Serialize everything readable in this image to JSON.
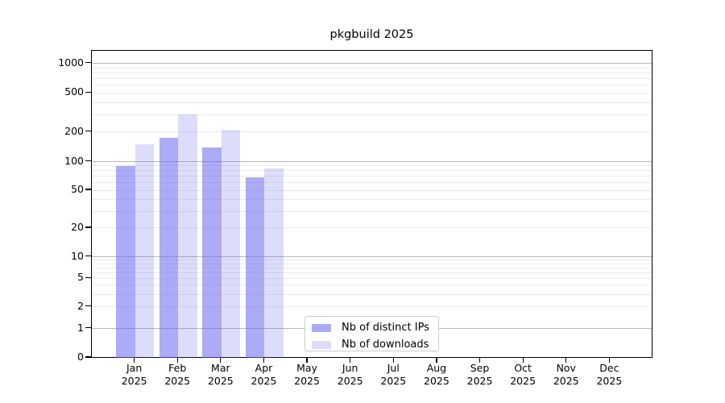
{
  "chart_data": {
    "type": "bar",
    "title": "pkgbuild 2025",
    "scale": "log",
    "categories": [
      "Jan",
      "Feb",
      "Mar",
      "Apr",
      "May",
      "Jun",
      "Jul",
      "Aug",
      "Sep",
      "Oct",
      "Nov",
      "Dec"
    ],
    "year_label": "2025",
    "series": [
      {
        "name": "Nb of distinct IPs",
        "color": "#6666ee",
        "alpha": 0.55,
        "values": [
          90,
          175,
          140,
          68
        ]
      },
      {
        "name": "Nb of downloads",
        "color": "#6666ee",
        "alpha": 0.22,
        "values": [
          150,
          300,
          210,
          85
        ]
      }
    ],
    "y_ticks": [
      0,
      1,
      2,
      5,
      10,
      20,
      50,
      100,
      200,
      500,
      1000
    ],
    "y_major_gridlines": [
      1,
      10,
      100,
      1000
    ],
    "ylim": [
      0,
      1350
    ],
    "grid": true,
    "legend_position": "lower-center",
    "xlabel": "",
    "ylabel": ""
  },
  "colors": {
    "major_gridline": "#b8b8b8",
    "minor_gridline": "#ebebeb",
    "axis": "#000000",
    "background": "#ffffff"
  }
}
